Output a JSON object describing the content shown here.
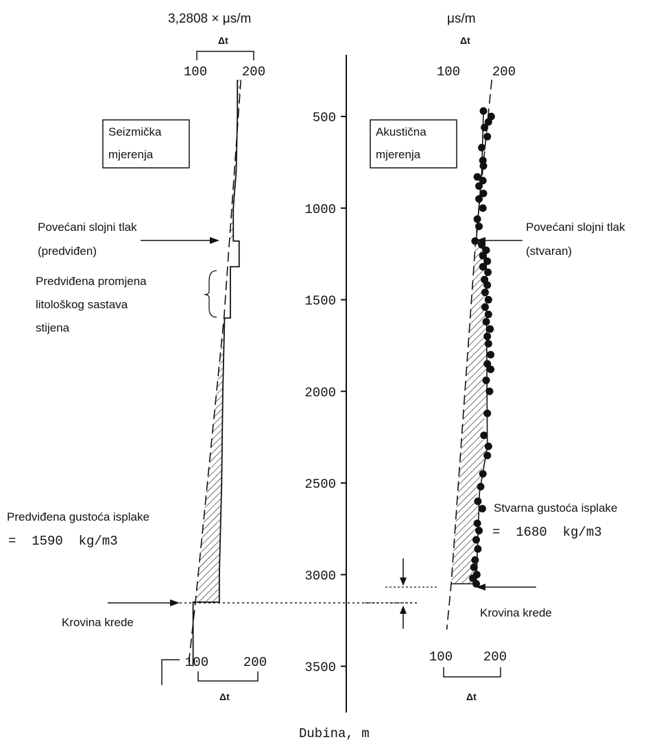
{
  "left_panel": {
    "unit_top": "3,2808 × μs/m",
    "axis_symbol_top": "Δt",
    "tick_top": [
      "100",
      "200"
    ],
    "tick_bottom": [
      "100",
      "200"
    ],
    "axis_symbol_bottom": "Δt",
    "box_label": [
      "Seizmička",
      "mjerenja"
    ],
    "pressure_label": [
      "Povećani slojni tlak",
      "(predviđen)"
    ],
    "lithology_label": [
      "Predviđena promjena",
      "litološkog sastava",
      "stijena"
    ],
    "density_label": "Predviđena gustoća isplake",
    "density_value": "=  1590  kg/m3",
    "krovina_label": "Krovina krede"
  },
  "right_panel": {
    "unit_top": "μs/m",
    "axis_symbol_top": "Δt",
    "tick_top": [
      "100",
      "200"
    ],
    "tick_bottom": [
      "100",
      "200"
    ],
    "axis_symbol_bottom": "Δt",
    "box_label": [
      "Akustična",
      "mjerenja"
    ],
    "pressure_label": [
      "Povećani slojni tlak",
      "(stvaran)"
    ],
    "density_label": "Stvarna gustoća isplake",
    "density_value": "=  1680  kg/m3",
    "krovina_label": "Krovina krede"
  },
  "depth_axis": {
    "label": "Dubina, m",
    "ticks": [
      "500",
      "1000",
      "1500",
      "2000",
      "2500",
      "3000",
      "3500"
    ]
  },
  "chart_data": [
    {
      "type": "line",
      "name": "seismic",
      "x_unit": "Δt (3,2808 × μs/m)",
      "y_unit": "depth (m)",
      "xlim": [
        100,
        200
      ],
      "ylim": [
        3800,
        250
      ],
      "normal_trend": [
        [
          178,
          300
        ],
        [
          149,
          1600
        ],
        [
          100,
          3150
        ],
        [
          88,
          3500
        ]
      ],
      "measured_profile": [
        [
          172,
          300
        ],
        [
          172,
          500
        ],
        [
          170,
          800
        ],
        [
          165,
          1000
        ],
        [
          165,
          1180
        ],
        [
          175,
          1180
        ],
        [
          175,
          1320
        ],
        [
          160,
          1320
        ],
        [
          160,
          1600
        ],
        [
          150,
          1600
        ],
        [
          147,
          2000
        ],
        [
          145,
          2500
        ],
        [
          141,
          3000
        ],
        [
          141,
          3150
        ],
        [
          96,
          3150
        ],
        [
          96,
          3500
        ]
      ],
      "pressure_top_depth": 1180,
      "lithology_range": [
        1320,
        1600
      ],
      "chalk_top_depth": 3150
    },
    {
      "type": "scatter",
      "name": "acoustic",
      "x_unit": "Δt (μs/m)",
      "y_unit": "depth (m)",
      "xlim": [
        100,
        200
      ],
      "ylim": [
        3800,
        250
      ],
      "normal_trend": [
        [
          178,
          300
        ],
        [
          149,
          1180
        ],
        [
          105,
          3050
        ],
        [
          97,
          3300
        ]
      ],
      "points": [
        [
          163,
          470
        ],
        [
          177,
          500
        ],
        [
          172,
          530
        ],
        [
          165,
          560
        ],
        [
          170,
          610
        ],
        [
          160,
          670
        ],
        [
          162,
          740
        ],
        [
          163,
          770
        ],
        [
          152,
          830
        ],
        [
          162,
          850
        ],
        [
          155,
          880
        ],
        [
          163,
          920
        ],
        [
          155,
          950
        ],
        [
          162,
          1000
        ],
        [
          152,
          1060
        ],
        [
          155,
          1100
        ],
        [
          148,
          1180
        ],
        [
          160,
          1200
        ],
        [
          168,
          1230
        ],
        [
          162,
          1260
        ],
        [
          170,
          1290
        ],
        [
          162,
          1320
        ],
        [
          171,
          1350
        ],
        [
          165,
          1390
        ],
        [
          170,
          1420
        ],
        [
          166,
          1460
        ],
        [
          172,
          1500
        ],
        [
          166,
          1540
        ],
        [
          172,
          1580
        ],
        [
          168,
          1620
        ],
        [
          175,
          1660
        ],
        [
          170,
          1700
        ],
        [
          172,
          1740
        ],
        [
          176,
          1800
        ],
        [
          170,
          1850
        ],
        [
          176,
          1880
        ],
        [
          168,
          1940
        ],
        [
          174,
          2000
        ],
        [
          170,
          2120
        ],
        [
          164,
          2240
        ],
        [
          172,
          2300
        ],
        [
          170,
          2350
        ],
        [
          162,
          2450
        ],
        [
          158,
          2520
        ],
        [
          153,
          2600
        ],
        [
          161,
          2640
        ],
        [
          152,
          2720
        ],
        [
          155,
          2760
        ],
        [
          150,
          2810
        ],
        [
          153,
          2860
        ],
        [
          148,
          2920
        ],
        [
          146,
          2960
        ],
        [
          151,
          3000
        ],
        [
          144,
          3020
        ],
        [
          150,
          3050
        ]
      ],
      "pressure_top_depth": 1180,
      "chalk_top_depth": 3050
    }
  ]
}
